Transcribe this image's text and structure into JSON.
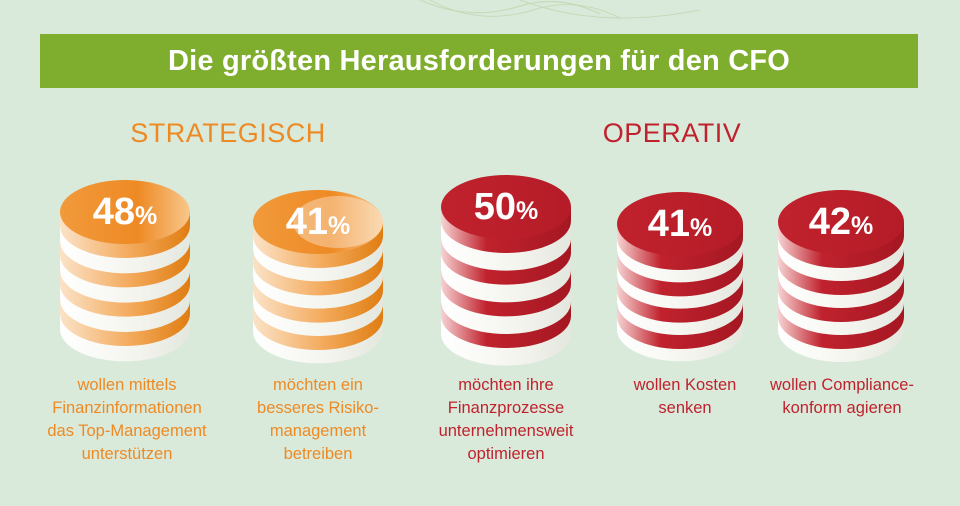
{
  "header": {
    "title": "Die größten Herausforderungen für den CFO"
  },
  "sections": {
    "strategisch": "STRATEGISCH",
    "operativ": "OPERATIV"
  },
  "colors": {
    "background": "#d9eadb",
    "title_bar": "#7fad2d",
    "strategic": "#ee8a24",
    "operative": "#c0222d"
  },
  "chart_data": {
    "type": "bar",
    "title": "Die größten Herausforderungen für den CFO",
    "unit": "%",
    "categories": [
      "wollen mittels\nFinanzinformationen\ndas Top-Management\nunterstützen",
      "möchten ein\nbesseres Risiko-\nmanagement\nbetreiben",
      "möchten ihre\nFinanzprozesse\nunternehmensweit\noptimieren",
      "wollen Kosten\nsenken",
      "wollen Compliance-\nkonform agieren"
    ],
    "values": [
      48,
      41,
      50,
      41,
      42
    ],
    "groups": [
      "STRATEGISCH",
      "STRATEGISCH",
      "OPERATIV",
      "OPERATIV",
      "OPERATIV"
    ]
  }
}
